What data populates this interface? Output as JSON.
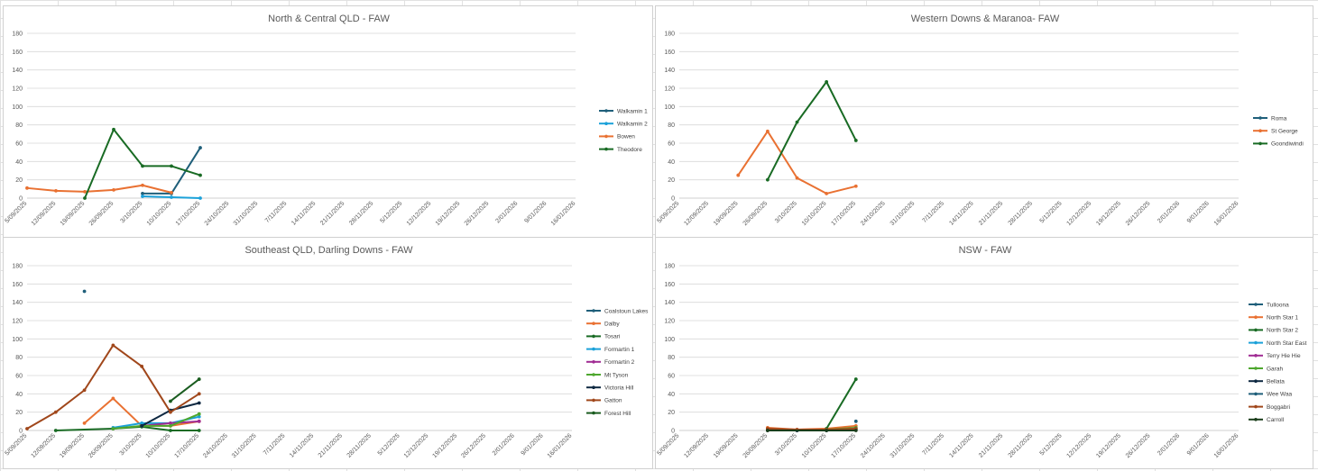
{
  "colors": {
    "blue_dark": "#1f5f7a",
    "blue_light": "#1ba1d9",
    "orange": "#e97132",
    "green_dark": "#196b24",
    "navy": "#0e2841",
    "purple": "#a02b93",
    "lime": "#4ea72e",
    "brown": "#a0471b",
    "gridline": "#d9d9d9",
    "axis_text": "#595959"
  },
  "date_ticks": [
    "5/09/2025",
    "12/09/2025",
    "19/09/2025",
    "26/09/2025",
    "3/10/2025",
    "10/10/2025",
    "17/10/2025",
    "24/10/2025",
    "31/10/2025",
    "7/11/2025",
    "14/11/2025",
    "21/11/2025",
    "28/11/2025",
    "5/12/2025",
    "12/12/2025",
    "19/12/2025",
    "26/12/2025",
    "2/01/2026",
    "9/01/2026",
    "16/01/2026"
  ],
  "y_ticks": [
    0,
    20,
    40,
    60,
    80,
    100,
    120,
    140,
    160,
    180
  ],
  "chart_data": [
    {
      "type": "line",
      "title": "North & Central QLD - FAW",
      "ylim": [
        0,
        180
      ],
      "xlim": [
        "2025-09-05",
        "2026-01-16"
      ],
      "grid": "horizontal",
      "legend": "right",
      "series": [
        {
          "name": "Walkamin 1",
          "color": "#1f5f7a",
          "points": [
            [
              "2025-10-03",
              5
            ],
            [
              "2025-10-10",
              5
            ],
            [
              "2025-10-17",
              55
            ]
          ]
        },
        {
          "name": "Walkamin 2",
          "color": "#1ba1d9",
          "points": [
            [
              "2025-10-03",
              2
            ],
            [
              "2025-10-10",
              1
            ],
            [
              "2025-10-17",
              0
            ]
          ]
        },
        {
          "name": "Bowen",
          "color": "#e97132",
          "points": [
            [
              "2025-09-05",
              11
            ],
            [
              "2025-09-12",
              8
            ],
            [
              "2025-09-19",
              7
            ],
            [
              "2025-09-26",
              9
            ],
            [
              "2025-10-03",
              14
            ],
            [
              "2025-10-10",
              6
            ]
          ]
        },
        {
          "name": "Theodore",
          "color": "#196b24",
          "points": [
            [
              "2025-09-19",
              0
            ],
            [
              "2025-09-26",
              75
            ],
            [
              "2025-10-03",
              35
            ],
            [
              "2025-10-10",
              35
            ],
            [
              "2025-10-17",
              25
            ]
          ]
        }
      ]
    },
    {
      "type": "line",
      "title": "Western Downs & Maranoa- FAW",
      "ylim": [
        0,
        180
      ],
      "xlim": [
        "2025-09-05",
        "2026-01-16"
      ],
      "grid": "horizontal",
      "legend": "right",
      "series": [
        {
          "name": "Roma",
          "color": "#1f5f7a",
          "points": []
        },
        {
          "name": "St George",
          "color": "#e97132",
          "points": [
            [
              "2025-09-19",
              25
            ],
            [
              "2025-09-26",
              73
            ],
            [
              "2025-10-03",
              22
            ],
            [
              "2025-10-10",
              5
            ],
            [
              "2025-10-17",
              13
            ]
          ]
        },
        {
          "name": "Goondiwindi",
          "color": "#196b24",
          "points": [
            [
              "2025-09-26",
              20
            ],
            [
              "2025-10-03",
              83
            ],
            [
              "2025-10-10",
              127
            ],
            [
              "2025-10-17",
              63
            ]
          ]
        }
      ]
    },
    {
      "type": "line",
      "title": "Southeast QLD, Darling Downs - FAW",
      "ylim": [
        0,
        180
      ],
      "xlim": [
        "2025-09-05",
        "2026-01-16"
      ],
      "grid": "horizontal",
      "legend": "right",
      "series": [
        {
          "name": "Coalstoun Lakes",
          "color": "#1f5f7a",
          "points": [
            [
              "2025-09-19",
              152
            ]
          ]
        },
        {
          "name": "Dalby",
          "color": "#e97132",
          "points": [
            [
              "2025-09-19",
              8
            ],
            [
              "2025-09-26",
              35
            ],
            [
              "2025-10-03",
              5
            ],
            [
              "2025-10-10",
              5
            ],
            [
              "2025-10-17",
              10
            ]
          ]
        },
        {
          "name": "Tosari",
          "color": "#196b24",
          "points": [
            [
              "2025-09-12",
              0
            ],
            [
              "2025-09-26",
              2
            ],
            [
              "2025-10-03",
              4
            ],
            [
              "2025-10-10",
              0
            ],
            [
              "2025-10-17",
              0
            ]
          ]
        },
        {
          "name": "Formartin 1",
          "color": "#1ba1d9",
          "points": [
            [
              "2025-09-26",
              3
            ],
            [
              "2025-10-03",
              8
            ],
            [
              "2025-10-10",
              8
            ],
            [
              "2025-10-17",
              15
            ]
          ]
        },
        {
          "name": "Formartin 2",
          "color": "#a02b93",
          "points": [
            [
              "2025-10-03",
              5
            ],
            [
              "2025-10-10",
              8
            ],
            [
              "2025-10-17",
              10
            ]
          ]
        },
        {
          "name": "Mt Tyson",
          "color": "#4ea72e",
          "points": [
            [
              "2025-09-26",
              2
            ],
            [
              "2025-10-03",
              5
            ],
            [
              "2025-10-10",
              5
            ],
            [
              "2025-10-17",
              18
            ]
          ]
        },
        {
          "name": "Victoria Hill",
          "color": "#0e2841",
          "points": [
            [
              "2025-10-03",
              5
            ],
            [
              "2025-10-10",
              22
            ],
            [
              "2025-10-17",
              30
            ]
          ]
        },
        {
          "name": "Gatton",
          "color": "#a0471b",
          "points": [
            [
              "2025-09-05",
              2
            ],
            [
              "2025-09-12",
              20
            ],
            [
              "2025-09-19",
              44
            ],
            [
              "2025-09-26",
              93
            ],
            [
              "2025-10-03",
              70
            ],
            [
              "2025-10-10",
              20
            ],
            [
              "2025-10-17",
              40
            ]
          ]
        },
        {
          "name": "Forest Hill",
          "color": "#1a5c1f",
          "points": [
            [
              "2025-10-10",
              32
            ],
            [
              "2025-10-17",
              56
            ]
          ]
        }
      ]
    },
    {
      "type": "line",
      "title": "NSW - FAW",
      "ylim": [
        0,
        180
      ],
      "xlim": [
        "2025-09-05",
        "2026-01-16"
      ],
      "grid": "horizontal",
      "legend": "right",
      "series": [
        {
          "name": "Tulloona",
          "color": "#1f5f7a",
          "points": [
            [
              "2025-10-17",
              10
            ]
          ]
        },
        {
          "name": "North Star 1",
          "color": "#e97132",
          "points": [
            [
              "2025-09-26",
              3
            ],
            [
              "2025-10-03",
              1
            ],
            [
              "2025-10-10",
              2
            ],
            [
              "2025-10-17",
              5
            ]
          ]
        },
        {
          "name": "North Star 2",
          "color": "#196b24",
          "points": [
            [
              "2025-10-10",
              2
            ],
            [
              "2025-10-17",
              56
            ]
          ]
        },
        {
          "name": "North Star East",
          "color": "#1ba1d9",
          "points": [
            [
              "2025-09-26",
              1
            ],
            [
              "2025-10-03",
              0
            ],
            [
              "2025-10-10",
              1
            ]
          ]
        },
        {
          "name": "Terry Hie Hie",
          "color": "#a02b93",
          "points": [
            [
              "2025-09-26",
              1
            ],
            [
              "2025-10-03",
              0
            ]
          ]
        },
        {
          "name": "Garah",
          "color": "#4ea72e",
          "points": [
            [
              "2025-10-03",
              0
            ],
            [
              "2025-10-10",
              1
            ],
            [
              "2025-10-17",
              3
            ]
          ]
        },
        {
          "name": "Bellata",
          "color": "#0e2841",
          "points": [
            [
              "2025-09-26",
              0
            ],
            [
              "2025-10-03",
              0
            ],
            [
              "2025-10-10",
              0
            ],
            [
              "2025-10-17",
              1
            ]
          ]
        },
        {
          "name": "Wee Waa",
          "color": "#1f5f7a",
          "points": [
            [
              "2025-10-10",
              0
            ],
            [
              "2025-10-17",
              2
            ]
          ]
        },
        {
          "name": "Boggabri",
          "color": "#a0471b",
          "points": [
            [
              "2025-09-26",
              2
            ],
            [
              "2025-10-03",
              1
            ],
            [
              "2025-10-10",
              1
            ],
            [
              "2025-10-17",
              2
            ]
          ]
        },
        {
          "name": "Carroll",
          "color": "#1a3d1a",
          "points": [
            [
              "2025-09-26",
              0
            ],
            [
              "2025-10-10",
              0
            ],
            [
              "2025-10-17",
              0
            ]
          ]
        }
      ]
    }
  ]
}
